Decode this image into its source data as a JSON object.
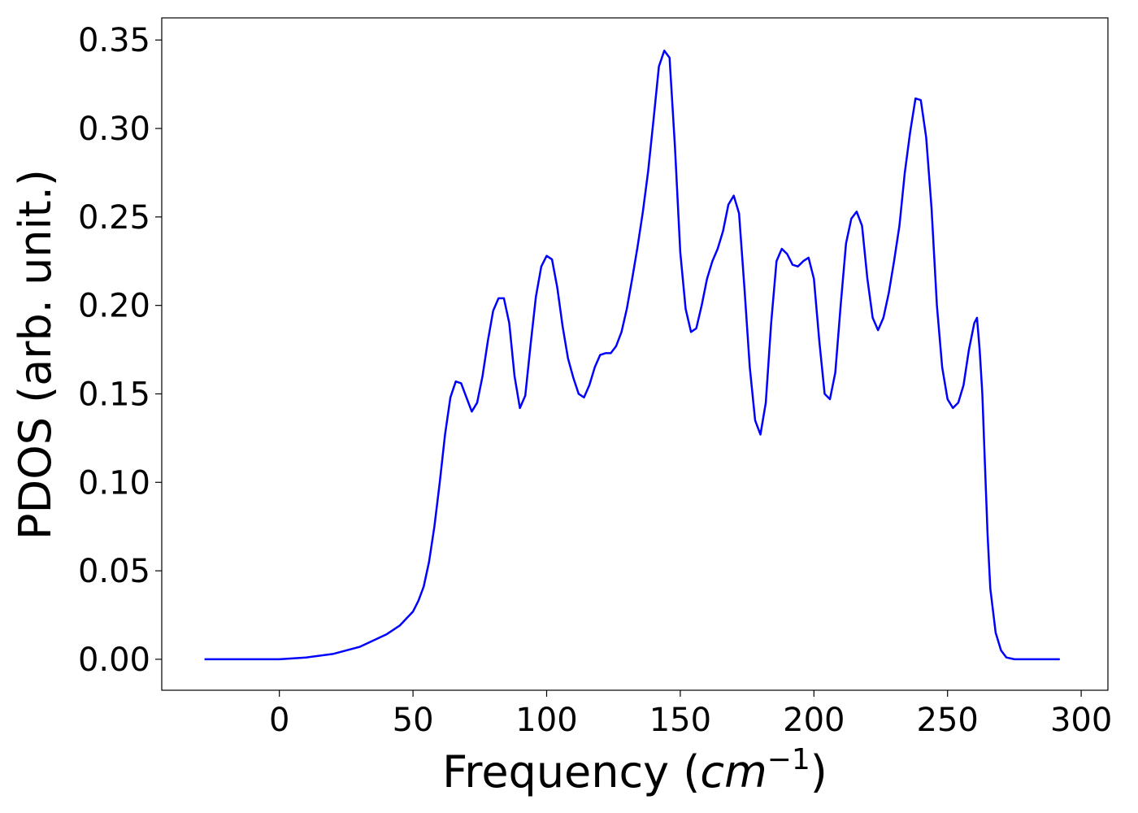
{
  "chart_data": {
    "type": "line",
    "xlabel": "Frequency (",
    "xlabel_unit": "cm",
    "xlabel_exponent": "−1",
    "xlabel_close": ")",
    "ylabel": "PDOS (arb. unit.)",
    "xlim": [
      -44,
      310
    ],
    "ylim": [
      -0.0175,
      0.3625
    ],
    "xticks": [
      0,
      50,
      100,
      150,
      200,
      250,
      300
    ],
    "xtick_labels": [
      "0",
      "50",
      "100",
      "150",
      "200",
      "250",
      "300"
    ],
    "yticks": [
      0.0,
      0.05,
      0.1,
      0.15,
      0.2,
      0.25,
      0.3,
      0.35
    ],
    "ytick_labels": [
      "0.00",
      "0.05",
      "0.10",
      "0.15",
      "0.20",
      "0.25",
      "0.30",
      "0.35"
    ],
    "grid": false,
    "legend": false,
    "line_color": "#0000ff",
    "series": [
      {
        "x": [
          -28,
          0,
          10,
          20,
          30,
          40,
          45,
          50,
          52,
          54,
          56,
          58,
          60,
          62,
          64,
          66,
          68,
          70,
          72,
          74,
          76,
          78,
          80,
          82,
          84,
          86,
          88,
          90,
          92,
          94,
          96,
          98,
          100,
          102,
          104,
          106,
          108,
          110,
          112,
          114,
          116,
          118,
          120,
          122,
          124,
          126,
          128,
          130,
          132,
          134,
          136,
          138,
          140,
          142,
          144,
          146,
          148,
          150,
          152,
          154,
          156,
          158,
          160,
          162,
          164,
          166,
          168,
          170,
          172,
          174,
          176,
          178,
          180,
          182,
          184,
          186,
          188,
          190,
          192,
          194,
          196,
          198,
          200,
          202,
          204,
          206,
          208,
          210,
          212,
          214,
          216,
          218,
          220,
          222,
          224,
          226,
          228,
          230,
          232,
          234,
          236,
          238,
          240,
          242,
          244,
          246,
          248,
          250,
          252,
          254,
          256,
          258,
          260,
          261,
          262,
          263,
          264,
          265,
          266,
          268,
          270,
          272,
          275,
          280,
          292
        ],
        "y": [
          0.0,
          0.0,
          0.001,
          0.003,
          0.007,
          0.014,
          0.019,
          0.027,
          0.033,
          0.041,
          0.055,
          0.075,
          0.1,
          0.127,
          0.148,
          0.157,
          0.156,
          0.148,
          0.14,
          0.145,
          0.16,
          0.18,
          0.197,
          0.204,
          0.204,
          0.19,
          0.16,
          0.142,
          0.149,
          0.178,
          0.205,
          0.222,
          0.228,
          0.226,
          0.21,
          0.188,
          0.17,
          0.159,
          0.15,
          0.148,
          0.155,
          0.165,
          0.172,
          0.173,
          0.173,
          0.177,
          0.185,
          0.198,
          0.215,
          0.233,
          0.253,
          0.276,
          0.305,
          0.335,
          0.344,
          0.34,
          0.29,
          0.23,
          0.198,
          0.185,
          0.187,
          0.2,
          0.215,
          0.225,
          0.232,
          0.242,
          0.257,
          0.262,
          0.252,
          0.21,
          0.165,
          0.135,
          0.127,
          0.145,
          0.19,
          0.225,
          0.232,
          0.229,
          0.223,
          0.222,
          0.225,
          0.227,
          0.215,
          0.18,
          0.15,
          0.147,
          0.162,
          0.2,
          0.235,
          0.249,
          0.253,
          0.245,
          0.215,
          0.193,
          0.186,
          0.193,
          0.207,
          0.225,
          0.245,
          0.275,
          0.298,
          0.317,
          0.316,
          0.295,
          0.255,
          0.2,
          0.165,
          0.147,
          0.142,
          0.145,
          0.155,
          0.175,
          0.19,
          0.193,
          0.175,
          0.15,
          0.11,
          0.07,
          0.04,
          0.015,
          0.005,
          0.001,
          0.0,
          0.0,
          0.0
        ]
      }
    ]
  }
}
